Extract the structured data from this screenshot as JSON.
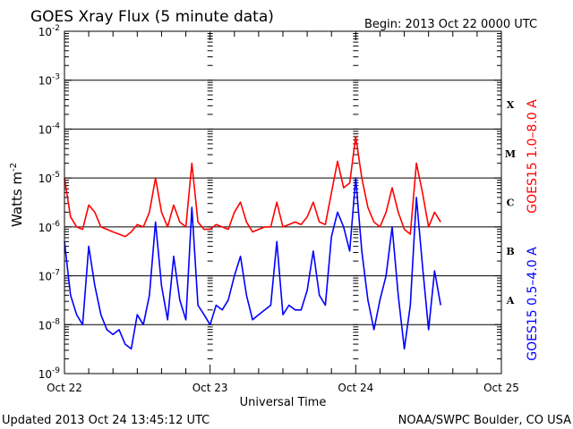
{
  "chart_data": {
    "type": "line",
    "title": "GOES Xray Flux (5 minute data)",
    "subtitle": "Begin:  2013 Oct 22 0000 UTC",
    "xlabel": "Universal Time",
    "ylabel": "Watts m",
    "ylabel_exp": "-2",
    "x_tick_labels": [
      "Oct 22",
      "Oct 23",
      "Oct 24",
      "Oct 25"
    ],
    "x_range": [
      "2013-10-22 00:00",
      "2013-10-25 00:00"
    ],
    "y_scale": "log",
    "ylim": [
      1e-09,
      0.01
    ],
    "y_tick_labels": [
      {
        "base": "10",
        "exp": "-2"
      },
      {
        "base": "10",
        "exp": "-3"
      },
      {
        "base": "10",
        "exp": "-4"
      },
      {
        "base": "10",
        "exp": "-5"
      },
      {
        "base": "10",
        "exp": "-6"
      },
      {
        "base": "10",
        "exp": "-7"
      },
      {
        "base": "10",
        "exp": "-8"
      },
      {
        "base": "10",
        "exp": "-9"
      }
    ],
    "flare_classes": [
      "X",
      "M",
      "C",
      "B",
      "A"
    ],
    "grid": "horizontal at each decade",
    "footer_left": "Updated 2013 Oct 24 13:45:12 UTC",
    "footer_right": "NOAA/SWPC Boulder, CO USA",
    "x": [
      "2013-10-22 00:00",
      "2013-10-22 01:00",
      "2013-10-22 02:00",
      "2013-10-22 03:00",
      "2013-10-22 04:00",
      "2013-10-22 05:00",
      "2013-10-22 06:00",
      "2013-10-22 07:00",
      "2013-10-22 08:00",
      "2013-10-22 09:00",
      "2013-10-22 10:00",
      "2013-10-22 11:00",
      "2013-10-22 12:00",
      "2013-10-22 13:00",
      "2013-10-22 14:00",
      "2013-10-22 15:00",
      "2013-10-22 16:00",
      "2013-10-22 17:00",
      "2013-10-22 18:00",
      "2013-10-22 19:00",
      "2013-10-22 20:00",
      "2013-10-22 21:00",
      "2013-10-22 22:00",
      "2013-10-22 23:00",
      "2013-10-23 00:00",
      "2013-10-23 01:00",
      "2013-10-23 02:00",
      "2013-10-23 03:00",
      "2013-10-23 04:00",
      "2013-10-23 05:00",
      "2013-10-23 06:00",
      "2013-10-23 07:00",
      "2013-10-23 08:00",
      "2013-10-23 09:00",
      "2013-10-23 10:00",
      "2013-10-23 11:00",
      "2013-10-23 12:00",
      "2013-10-23 13:00",
      "2013-10-23 14:00",
      "2013-10-23 15:00",
      "2013-10-23 16:00",
      "2013-10-23 17:00",
      "2013-10-23 18:00",
      "2013-10-23 19:00",
      "2013-10-23 20:00",
      "2013-10-23 21:00",
      "2013-10-23 22:00",
      "2013-10-23 23:00",
      "2013-10-24 00:00",
      "2013-10-24 01:00",
      "2013-10-24 02:00",
      "2013-10-24 03:00",
      "2013-10-24 04:00",
      "2013-10-24 05:00",
      "2013-10-24 06:00",
      "2013-10-24 07:00",
      "2013-10-24 08:00",
      "2013-10-24 09:00",
      "2013-10-24 10:00",
      "2013-10-24 11:00",
      "2013-10-24 12:00",
      "2013-10-24 13:00",
      "2013-10-24 14:00"
    ],
    "series": [
      {
        "name": "GOES15 1.0–8.0 A",
        "color": "#ff0000",
        "values": [
          1e-05,
          1.6e-06,
          1e-06,
          8.9e-07,
          2.8e-06,
          2e-06,
          1e-06,
          8.9e-07,
          7.9e-07,
          7.1e-07,
          6.3e-07,
          7.9e-07,
          1.12e-06,
          1e-06,
          2e-06,
          1e-05,
          2e-06,
          1e-06,
          2.8e-06,
          1.26e-06,
          1e-06,
          2e-05,
          1.26e-06,
          8.9e-07,
          8.9e-07,
          1.12e-06,
          1e-06,
          8.9e-07,
          2e-06,
          3.2e-06,
          1.26e-06,
          7.9e-07,
          8.9e-07,
          1e-06,
          1e-06,
          3.2e-06,
          1e-06,
          1.12e-06,
          1.26e-06,
          1.12e-06,
          1.6e-06,
          3.2e-06,
          1.26e-06,
          1.12e-06,
          5e-06,
          2.2e-05,
          6.3e-06,
          7.9e-06,
          7.1e-05,
          1e-05,
          2.5e-06,
          1.26e-06,
          1e-06,
          2e-06,
          6.3e-06,
          2e-06,
          8.9e-07,
          7.1e-07,
          2e-05,
          5e-06,
          1e-06,
          2e-06,
          1.26e-06
        ]
      },
      {
        "name": "GOES15 0.5–4.0 A",
        "color": "#0000ff",
        "values": [
          5e-07,
          4e-08,
          1.6e-08,
          1e-08,
          4e-07,
          6.3e-08,
          1.6e-08,
          7.9e-09,
          6.3e-09,
          7.9e-09,
          4e-09,
          3.2e-09,
          1.6e-08,
          1e-08,
          4e-08,
          1.26e-06,
          6.3e-08,
          1.26e-08,
          2.5e-07,
          3.2e-08,
          1.26e-08,
          2.5e-06,
          2.5e-08,
          1.6e-08,
          1e-08,
          2.5e-08,
          2e-08,
          3.2e-08,
          1e-07,
          2.5e-07,
          4e-08,
          1.26e-08,
          1.6e-08,
          2e-08,
          2.5e-08,
          5e-07,
          1.6e-08,
          2.5e-08,
          2e-08,
          2e-08,
          5e-08,
          3.2e-07,
          4e-08,
          2.5e-08,
          6.3e-07,
          2e-06,
          1e-06,
          3.2e-07,
          1e-05,
          3.2e-07,
          3.2e-08,
          7.9e-09,
          3.2e-08,
          1e-07,
          1e-06,
          4e-08,
          3.2e-09,
          2.5e-08,
          4e-06,
          1.6e-07,
          7.9e-09,
          1.26e-07,
          2.5e-08
        ]
      }
    ]
  }
}
